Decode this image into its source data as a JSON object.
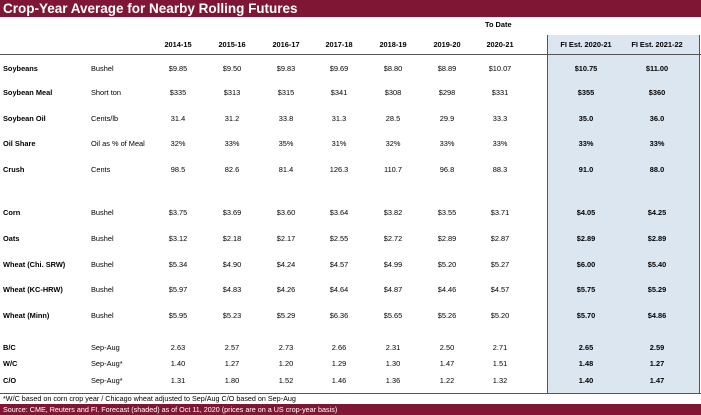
{
  "title": "Crop-Year Average for Nearby Rolling Futures",
  "header": {
    "todate": "To Date",
    "years": [
      "2014-15",
      "2015-16",
      "2016-17",
      "2017-18",
      "2018-19",
      "2019-20",
      "2020-21"
    ],
    "fi": [
      "FI Est. 2020-21",
      "FI Est. 2021-22"
    ]
  },
  "rows": [
    {
      "name": "Soybeans",
      "unit": "Bushel",
      "vals": [
        "$9.85",
        "$9.50",
        "$9.83",
        "$9.69",
        "$8.80",
        "$8.89",
        "$10.07"
      ],
      "fi": [
        "$10.75",
        "$11.00"
      ]
    },
    {
      "name": "Soybean Meal",
      "unit": "Short ton",
      "vals": [
        "$335",
        "$313",
        "$315",
        "$341",
        "$308",
        "$298",
        "$331"
      ],
      "fi": [
        "$355",
        "$360"
      ]
    },
    {
      "name": "Soybean Oil",
      "unit": "Cents/lb",
      "vals": [
        "31.4",
        "31.2",
        "33.8",
        "31.3",
        "28.5",
        "29.9",
        "33.3"
      ],
      "fi": [
        "35.0",
        "36.0"
      ]
    },
    {
      "name": "Oil Share",
      "unit": "Oil as % of Meal",
      "vals": [
        "32%",
        "33%",
        "35%",
        "31%",
        "32%",
        "33%",
        "33%"
      ],
      "fi": [
        "33%",
        "33%"
      ]
    },
    {
      "name": "Crush",
      "unit": "Cents",
      "vals": [
        "98.5",
        "82.6",
        "81.4",
        "126.3",
        "110.7",
        "96.8",
        "88.3"
      ],
      "fi": [
        "91.0",
        "88.0"
      ]
    },
    {
      "name": "Corn",
      "unit": "Bushel",
      "vals": [
        "$3.75",
        "$3.69",
        "$3.60",
        "$3.64",
        "$3.82",
        "$3.55",
        "$3.71"
      ],
      "fi": [
        "$4.05",
        "$4.25"
      ]
    },
    {
      "name": "Oats",
      "unit": "Bushel",
      "vals": [
        "$3.12",
        "$2.18",
        "$2.17",
        "$2.55",
        "$2.72",
        "$2.89",
        "$2.87"
      ],
      "fi": [
        "$2.89",
        "$2.89"
      ]
    },
    {
      "name": "Wheat (Chi. SRW)",
      "unit": "Bushel",
      "vals": [
        "$5.34",
        "$4.90",
        "$4.24",
        "$4.57",
        "$4.99",
        "$5.20",
        "$5.27"
      ],
      "fi": [
        "$6.00",
        "$5.40"
      ]
    },
    {
      "name": "Wheat (KC-HRW)",
      "unit": "Bushel",
      "vals": [
        "$5.97",
        "$4.83",
        "$4.26",
        "$4.64",
        "$4.87",
        "$4.46",
        "$4.57"
      ],
      "fi": [
        "$5.75",
        "$5.29"
      ]
    },
    {
      "name": "Wheat (Minn)",
      "unit": "Bushel",
      "vals": [
        "$5.95",
        "$5.23",
        "$5.29",
        "$6.36",
        "$5.65",
        "$5.26",
        "$5.20"
      ],
      "fi": [
        "$5.70",
        "$4.86"
      ]
    },
    {
      "name": "B/C",
      "unit": "Sep-Aug",
      "vals": [
        "2.63",
        "2.57",
        "2.73",
        "2.66",
        "2.31",
        "2.50",
        "2.71"
      ],
      "fi": [
        "2.65",
        "2.59"
      ]
    },
    {
      "name": "W/C",
      "unit": "Sep-Aug*",
      "vals": [
        "1.40",
        "1.27",
        "1.20",
        "1.29",
        "1.30",
        "1.47",
        "1.51"
      ],
      "fi": [
        "1.48",
        "1.27"
      ]
    },
    {
      "name": "C/O",
      "unit": "Sep-Aug*",
      "vals": [
        "1.31",
        "1.80",
        "1.52",
        "1.46",
        "1.36",
        "1.22",
        "1.32"
      ],
      "fi": [
        "1.40",
        "1.47"
      ]
    }
  ],
  "footnote": "*W/C based on corn crop year / Chicago wheat adjusted to Sep/Aug      C/O based on Sep-Aug",
  "source": "Source: CME, Reuters and FI.  Forecast (shaded) as of Oct 11, 2020  (prices are on a US crop-year basis)",
  "colors": {
    "accent": "#7f1734",
    "forecast_shade": "#dce6f1"
  }
}
